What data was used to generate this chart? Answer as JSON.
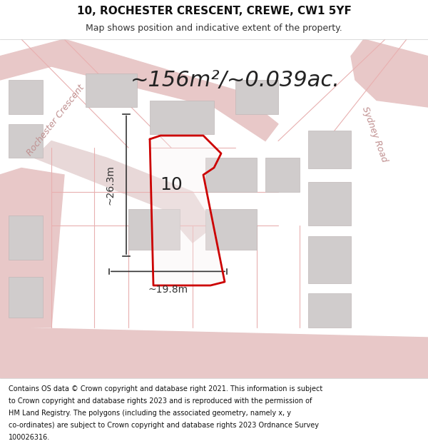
{
  "title_line1": "10, ROCHESTER CRESCENT, CREWE, CW1 5YF",
  "title_line2": "Map shows position and indicative extent of the property.",
  "area_text": "~156m²/~0.039ac.",
  "number_label": "10",
  "dim_vertical": "~26.3m",
  "dim_horizontal": "~19.8m",
  "road_label_left": "Rochester Crescent",
  "road_label_right": "Sydney Road",
  "footer_text": "Contains OS data © Crown copyright and database right 2021. This information is subject to Crown copyright and database rights 2023 and is reproduced with the permission of HM Land Registry. The polygons (including the associated geometry, namely x, y co-ordinates) are subject to Crown copyright and database rights 2023 Ordnance Survey 100026316.",
  "bg_color": "#f5f5f5",
  "map_bg": "#f0eeee",
  "plot_color_red": "#cc0000",
  "plot_fill": "#f0eeee",
  "road_color": "#e8c0c0",
  "building_color": "#d8d0d0",
  "dim_color": "#333333",
  "title_fontsize": 11,
  "subtitle_fontsize": 9,
  "area_fontsize": 22,
  "number_fontsize": 18,
  "dim_fontsize": 10,
  "road_fontsize": 9,
  "footer_fontsize": 7
}
